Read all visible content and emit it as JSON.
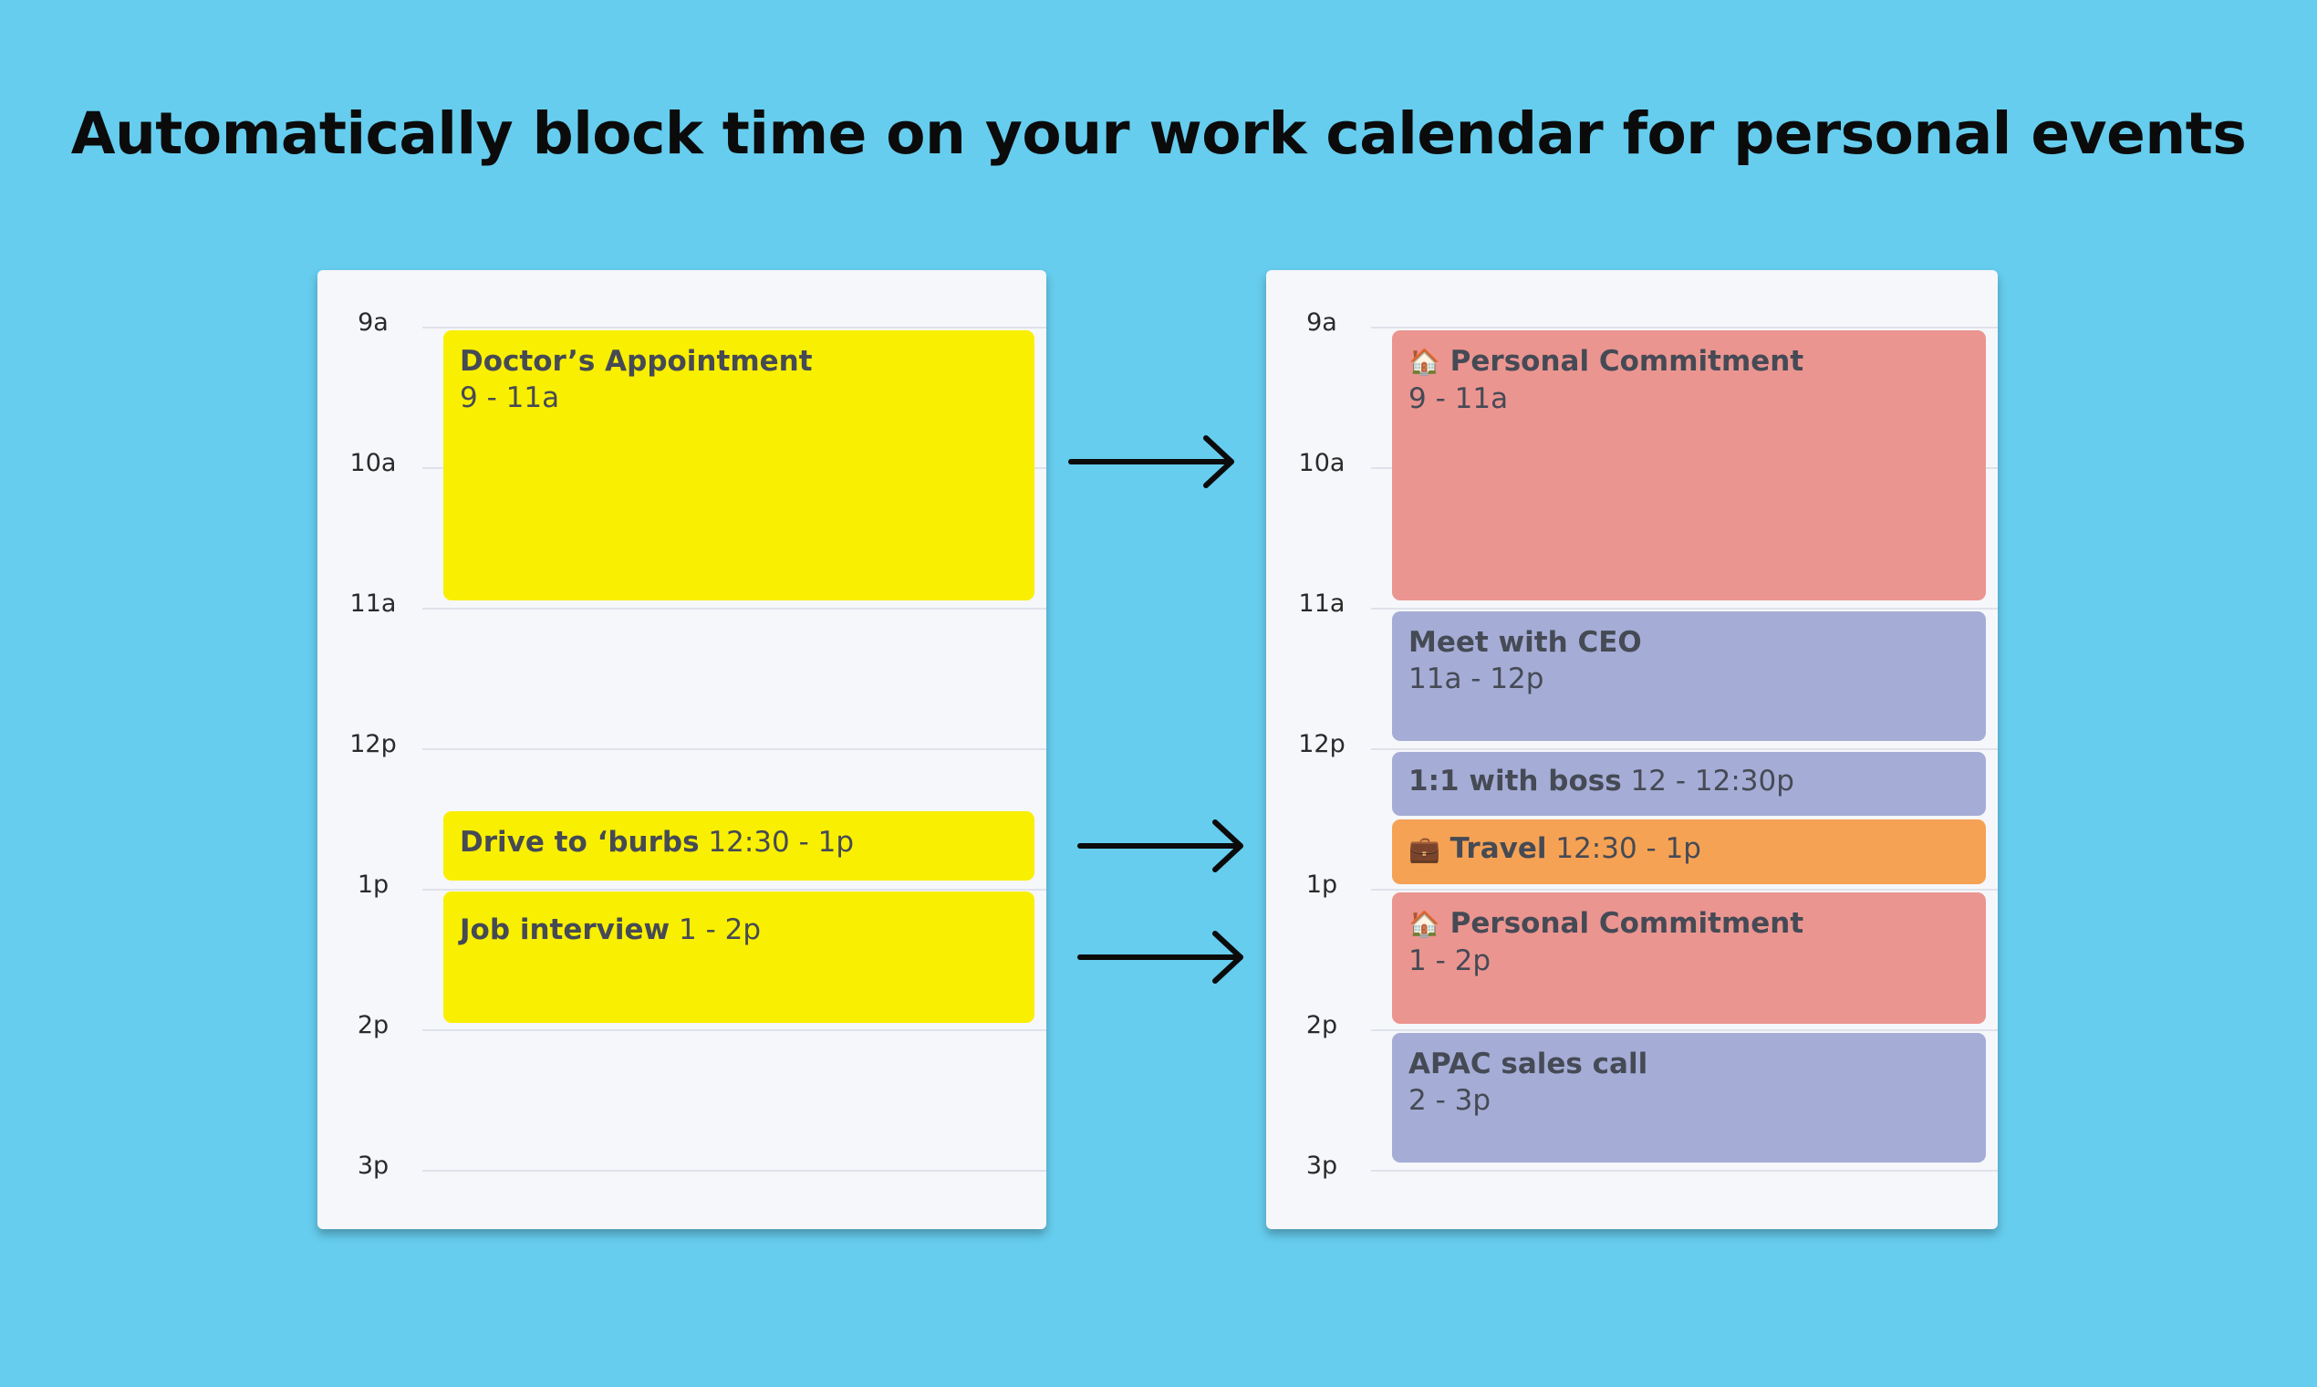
{
  "headline": "Automatically block time on your work calendar for personal events",
  "hours": [
    "9a",
    "10a",
    "11a",
    "12p",
    "1p",
    "2p",
    "3p"
  ],
  "personal_calendar": {
    "events": [
      {
        "title": "Doctor’s Appointment",
        "time": "9 - 11a",
        "color": "#f9ef00"
      },
      {
        "title": "Drive to ‘burbs",
        "time": "12:30 - 1p",
        "color": "#f9ef00"
      },
      {
        "title": "Job interview",
        "time": "1 - 2p",
        "color": "#f9ef00"
      }
    ]
  },
  "work_calendar": {
    "events": [
      {
        "icon": "house-icon",
        "emoji": "🏠",
        "title": "Personal Commitment",
        "time": "9 - 11a",
        "color": "#eb9590"
      },
      {
        "title": "Meet with CEO",
        "time": "11a - 12p",
        "color": "#a5add6"
      },
      {
        "title": "1:1 with boss",
        "time": "12 - 12:30p",
        "color": "#a5add6"
      },
      {
        "icon": "briefcase-icon",
        "emoji": "💼",
        "title": "Travel",
        "time": "12:30 - 1p",
        "color": "#f6a254"
      },
      {
        "icon": "house-icon",
        "emoji": "🏠",
        "title": "Personal Commitment",
        "time": "1 - 2p",
        "color": "#eb9590"
      },
      {
        "title": "APAC sales call",
        "time": "2 - 3p",
        "color": "#a5add6"
      }
    ]
  },
  "arrows": [
    {
      "icon": "arrow-right-icon"
    },
    {
      "icon": "arrow-right-icon"
    },
    {
      "icon": "arrow-right-icon"
    }
  ]
}
